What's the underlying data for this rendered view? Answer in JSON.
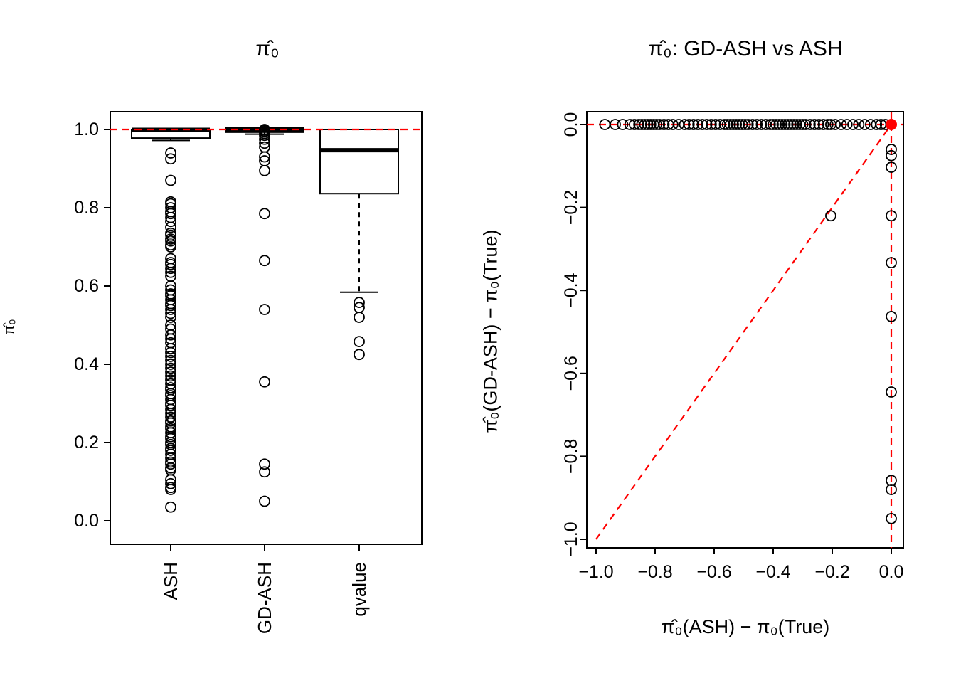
{
  "page": {
    "background": "#ffffff",
    "ink": "#000000",
    "accent_red": "#ff0000"
  },
  "chart_data": [
    {
      "type": "boxplot",
      "title": "π̂₀",
      "ylabel": "π̂₀",
      "categories": [
        "ASH",
        "GD-ASH",
        "qvalue"
      ],
      "ylim": [
        -0.04,
        1.04
      ],
      "yticks": [
        0.0,
        0.2,
        0.4,
        0.6,
        0.8,
        1.0
      ],
      "reference_line": {
        "y": 1.0,
        "color": "#ff0000",
        "style": "dashed"
      },
      "boxes": [
        {
          "category": "ASH",
          "q1": 0.978,
          "median": 0.999,
          "q3": 1.0,
          "whisker_low": 0.972,
          "whisker_high": 1.0,
          "outliers": [
            0.94,
            0.925,
            0.87,
            0.815,
            0.81,
            0.8,
            0.79,
            0.785,
            0.775,
            0.765,
            0.75,
            0.735,
            0.73,
            0.72,
            0.715,
            0.705,
            0.7,
            0.67,
            0.66,
            0.655,
            0.645,
            0.635,
            0.625,
            0.6,
            0.59,
            0.58,
            0.575,
            0.565,
            0.555,
            0.55,
            0.54,
            0.53,
            0.52,
            0.5,
            0.49,
            0.475,
            0.465,
            0.455,
            0.44,
            0.43,
            0.42,
            0.41,
            0.4,
            0.39,
            0.38,
            0.37,
            0.36,
            0.35,
            0.34,
            0.335,
            0.325,
            0.32,
            0.31,
            0.3,
            0.295,
            0.285,
            0.275,
            0.265,
            0.255,
            0.25,
            0.24,
            0.235,
            0.225,
            0.215,
            0.21,
            0.2,
            0.195,
            0.185,
            0.18,
            0.17,
            0.16,
            0.15,
            0.145,
            0.135,
            0.13,
            0.105,
            0.095,
            0.085,
            0.08,
            0.035
          ]
        },
        {
          "category": "GD-ASH",
          "q1": 0.993,
          "median": 1.0,
          "q3": 1.0,
          "whisker_low": 0.988,
          "whisker_high": 1.0,
          "outliers": [
            1.0,
            0.998,
            0.995,
            0.99,
            0.985,
            0.975,
            0.965,
            0.955,
            0.93,
            0.92,
            0.895,
            0.785,
            0.665,
            0.54,
            0.355,
            0.145,
            0.125,
            0.05
          ]
        },
        {
          "category": "qvalue",
          "q1": 0.836,
          "median": 0.947,
          "q3": 1.0,
          "whisker_low": 0.584,
          "whisker_high": 1.0,
          "outliers": [
            0.558,
            0.545,
            0.52,
            0.458,
            0.425
          ]
        }
      ]
    },
    {
      "type": "scatter",
      "title": "π̂₀: GD-ASH vs ASH",
      "xlabel": "π̂₀(ASH) − π₀(True)",
      "ylabel": "π̂₀(GD-ASH) − π₀(True)",
      "xlim": [
        -1.0,
        0.0
      ],
      "ylim": [
        -1.0,
        0.0
      ],
      "xticks": [
        -1.0,
        -0.8,
        -0.6,
        -0.4,
        -0.2,
        0.0
      ],
      "yticks": [
        0.0,
        -0.2,
        -0.4,
        -0.6,
        -0.8,
        -1.0
      ],
      "ref_lines": [
        {
          "kind": "horizontal",
          "value": 0.0,
          "color": "#ff0000",
          "style": "dashed"
        },
        {
          "kind": "vertical",
          "value": 0.0,
          "color": "#ff0000",
          "style": "dashed"
        },
        {
          "kind": "diagonal",
          "from": [
            -1.0,
            -1.0
          ],
          "to": [
            0.0,
            0.0
          ],
          "color": "#ff0000",
          "style": "dashed"
        }
      ],
      "points": [
        [
          -0.97,
          0
        ],
        [
          -0.935,
          0
        ],
        [
          -0.91,
          0
        ],
        [
          -0.885,
          0
        ],
        [
          -0.87,
          0
        ],
        [
          -0.855,
          0
        ],
        [
          -0.845,
          0
        ],
        [
          -0.835,
          0
        ],
        [
          -0.825,
          0
        ],
        [
          -0.815,
          0
        ],
        [
          -0.805,
          0
        ],
        [
          -0.795,
          0
        ],
        [
          -0.785,
          0
        ],
        [
          -0.77,
          0
        ],
        [
          -0.755,
          0
        ],
        [
          -0.74,
          0
        ],
        [
          -0.72,
          0
        ],
        [
          -0.7,
          0
        ],
        [
          -0.685,
          0
        ],
        [
          -0.67,
          0
        ],
        [
          -0.655,
          0
        ],
        [
          -0.64,
          0
        ],
        [
          -0.625,
          0
        ],
        [
          -0.61,
          0
        ],
        [
          -0.595,
          0
        ],
        [
          -0.58,
          0
        ],
        [
          -0.565,
          0
        ],
        [
          -0.555,
          0
        ],
        [
          -0.545,
          0
        ],
        [
          -0.535,
          0
        ],
        [
          -0.525,
          0
        ],
        [
          -0.515,
          0
        ],
        [
          -0.505,
          0
        ],
        [
          -0.495,
          0
        ],
        [
          -0.485,
          0
        ],
        [
          -0.47,
          0
        ],
        [
          -0.455,
          0
        ],
        [
          -0.44,
          0
        ],
        [
          -0.425,
          0
        ],
        [
          -0.41,
          0
        ],
        [
          -0.4,
          0
        ],
        [
          -0.39,
          0
        ],
        [
          -0.38,
          0
        ],
        [
          -0.37,
          0
        ],
        [
          -0.36,
          0
        ],
        [
          -0.35,
          0
        ],
        [
          -0.34,
          0
        ],
        [
          -0.33,
          0
        ],
        [
          -0.32,
          0
        ],
        [
          -0.31,
          0
        ],
        [
          -0.3,
          0
        ],
        [
          -0.29,
          0
        ],
        [
          -0.275,
          0
        ],
        [
          -0.26,
          0
        ],
        [
          -0.245,
          0
        ],
        [
          -0.23,
          0
        ],
        [
          -0.215,
          0
        ],
        [
          -0.205,
          0
        ],
        [
          -0.19,
          0
        ],
        [
          -0.17,
          0
        ],
        [
          -0.15,
          0
        ],
        [
          -0.13,
          0
        ],
        [
          -0.11,
          0
        ],
        [
          -0.09,
          0
        ],
        [
          -0.07,
          0
        ],
        [
          -0.05,
          0
        ],
        [
          -0.035,
          0
        ],
        [
          -0.02,
          0
        ],
        [
          0,
          -0.06
        ],
        [
          0,
          -0.075
        ],
        [
          0,
          -0.103
        ],
        [
          0,
          -0.22
        ],
        [
          0,
          -0.333
        ],
        [
          0,
          -0.463
        ],
        [
          0,
          -0.645
        ],
        [
          0,
          -0.858
        ],
        [
          0,
          -0.88
        ],
        [
          0,
          -0.95
        ],
        [
          -0.205,
          -0.22
        ]
      ],
      "highlight_point": {
        "x": 0.0,
        "y": 0.0,
        "color": "#ff0000",
        "filled": true
      }
    }
  ]
}
